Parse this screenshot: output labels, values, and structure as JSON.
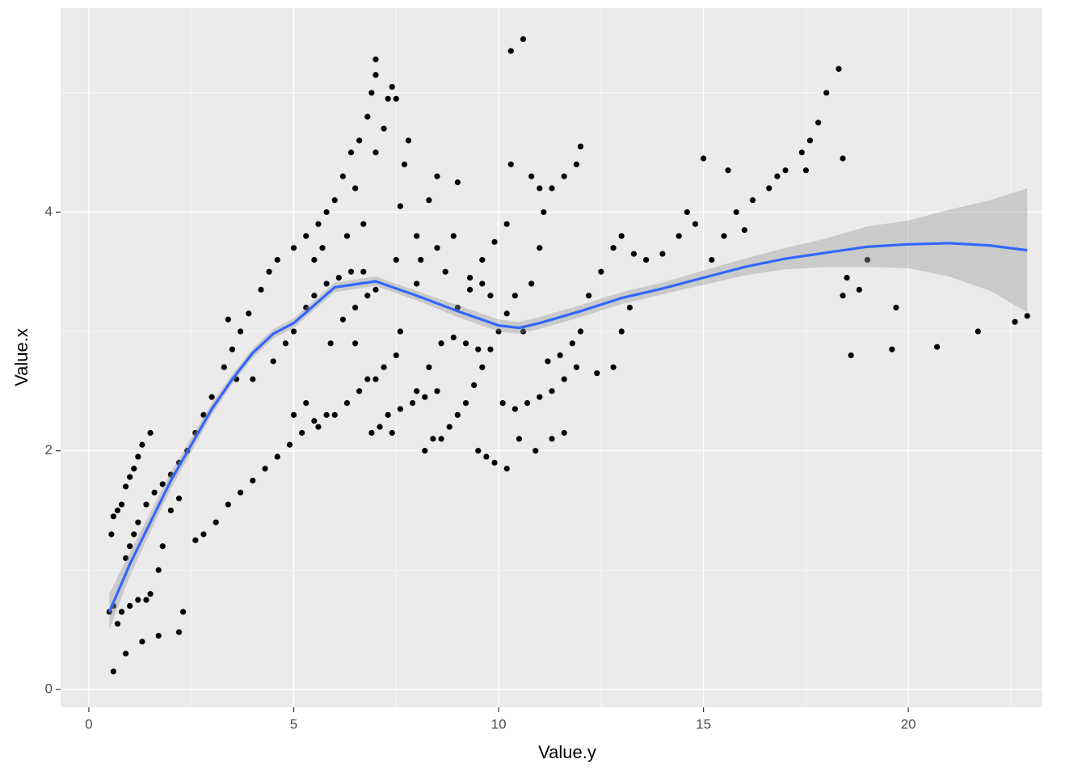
{
  "chart_data": {
    "type": "scatter",
    "x_label": "Value.y",
    "y_label": "Value.x",
    "xlim": [
      -0.69,
      23.27
    ],
    "ylim": [
      -0.15,
      5.71
    ],
    "xticks": [
      0,
      5,
      10,
      15,
      20
    ],
    "yticks": [
      0,
      2,
      4
    ],
    "grid": true,
    "point_color": "#000000",
    "line_color": "#3366FF",
    "band_color": "#999999",
    "points": {
      "x": [
        0.5,
        0.55,
        0.6,
        0.7,
        0.8,
        0.9,
        1.0,
        1.1,
        1.2,
        1.3,
        1.5,
        0.6,
        0.7,
        0.8,
        1.0,
        1.2,
        1.4,
        1.5,
        0.6,
        0.9,
        1.3,
        1.7,
        2.2,
        2.3,
        0.9,
        1.0,
        1.1,
        1.2,
        1.4,
        1.6,
        1.8,
        2.0,
        2.2,
        2.4,
        1.7,
        1.8,
        2.0,
        2.2,
        2.6,
        2.8,
        3.1,
        3.4,
        3.7,
        4.0,
        4.3,
        4.6,
        4.9,
        5.2,
        5.5,
        5.8,
        2.6,
        2.8,
        3.0,
        3.3,
        3.5,
        3.7,
        3.9,
        4.2,
        4.4,
        4.6,
        5.0,
        5.3,
        5.6,
        5.8,
        3.4,
        3.6,
        4.0,
        4.5,
        4.8,
        5.0,
        5.3,
        5.5,
        5.8,
        6.1,
        6.4,
        6.7,
        5.0,
        5.3,
        5.6,
        5.9,
        6.2,
        6.5,
        6.8,
        7.0,
        5.5,
        5.7,
        6.0,
        6.2,
        6.4,
        6.6,
        6.8,
        6.9,
        7.0,
        7.0,
        6.5,
        6.7,
        6.3,
        7.3,
        7.4,
        7.5,
        7.2,
        7.0,
        7.6,
        7.7,
        7.8,
        6.5,
        6.8,
        7.0,
        7.2,
        7.5,
        7.6,
        7.5,
        7.4,
        6.9,
        7.3,
        7.6,
        7.9,
        8.2,
        8.5,
        6.0,
        6.3,
        6.6,
        7.1,
        8.0,
        8.1,
        8.0,
        8.3,
        8.5,
        8.5,
        8.7,
        8.9,
        9.0,
        9.3,
        9.6,
        9.8,
        8.2,
        8.4,
        8.6,
        8.8,
        9.0,
        9.2,
        9.4,
        9.6,
        9.8,
        10.0,
        10.2,
        10.4,
        8.0,
        8.3,
        8.6,
        8.9,
        9.2,
        9.5,
        9.7,
        9.9,
        10.2,
        9.5,
        9.0,
        9.3,
        9.6,
        9.9,
        10.2,
        10.3,
        10.3,
        10.6,
        10.1,
        10.4,
        10.7,
        11.0,
        11.3,
        11.6,
        11.9,
        10.5,
        10.9,
        11.3,
        11.6,
        10.6,
        10.8,
        11.0,
        11.1,
        11.3,
        11.6,
        11.9,
        12.0,
        10.8,
        11.0,
        11.2,
        11.5,
        11.8,
        12.0,
        12.2,
        12.5,
        12.8,
        13.0,
        13.3,
        13.6,
        14.0,
        14.4,
        14.8,
        12.8,
        12.4,
        13.0,
        13.2,
        14.6,
        15.0,
        15.6,
        15.2,
        15.5,
        15.8,
        16.2,
        16.6,
        17.0,
        17.4,
        17.6,
        17.8,
        18.0,
        18.3,
        16.0,
        16.8,
        17.5,
        18.4,
        18.4,
        18.5,
        18.6,
        18.8,
        19.0,
        19.6,
        19.7,
        20.7,
        21.7,
        22.6,
        22.9
      ],
      "y": [
        0.65,
        1.3,
        1.45,
        1.5,
        1.55,
        1.7,
        1.78,
        1.85,
        1.95,
        2.05,
        2.15,
        0.7,
        0.55,
        0.65,
        0.7,
        0.75,
        0.75,
        0.8,
        0.15,
        0.3,
        0.4,
        0.45,
        0.48,
        0.65,
        1.1,
        1.2,
        1.3,
        1.4,
        1.55,
        1.65,
        1.72,
        1.8,
        1.9,
        2.0,
        1.0,
        1.2,
        1.5,
        1.6,
        1.25,
        1.3,
        1.4,
        1.55,
        1.65,
        1.75,
        1.85,
        1.95,
        2.05,
        2.15,
        2.25,
        2.3,
        2.15,
        2.3,
        2.45,
        2.7,
        2.85,
        3.0,
        3.15,
        3.35,
        3.5,
        3.6,
        3.7,
        3.8,
        3.9,
        4.0,
        3.1,
        2.6,
        2.6,
        2.75,
        2.9,
        3.0,
        3.2,
        3.3,
        3.4,
        3.45,
        3.5,
        3.5,
        2.3,
        2.4,
        2.2,
        2.9,
        3.1,
        3.2,
        3.3,
        3.35,
        3.6,
        3.7,
        4.1,
        4.3,
        4.5,
        4.6,
        4.8,
        5.0,
        5.15,
        5.28,
        4.2,
        3.9,
        3.8,
        4.95,
        5.05,
        4.95,
        4.7,
        4.5,
        4.05,
        4.4,
        4.6,
        2.9,
        2.6,
        2.6,
        2.7,
        3.6,
        3.0,
        2.8,
        2.15,
        2.15,
        2.3,
        2.35,
        2.4,
        2.45,
        2.5,
        2.3,
        2.4,
        2.5,
        2.2,
        3.4,
        3.6,
        3.8,
        4.1,
        4.3,
        3.7,
        3.5,
        3.8,
        4.25,
        3.35,
        3.4,
        3.3,
        2.0,
        2.1,
        2.1,
        2.2,
        2.3,
        2.4,
        2.55,
        2.7,
        2.85,
        3.0,
        3.15,
        3.3,
        2.5,
        2.7,
        2.9,
        2.95,
        2.9,
        2.85,
        1.95,
        1.9,
        1.85,
        2.0,
        3.2,
        3.45,
        3.6,
        3.75,
        3.9,
        4.4,
        5.35,
        5.45,
        2.4,
        2.35,
        2.4,
        2.45,
        2.5,
        2.6,
        2.7,
        2.1,
        2.0,
        2.1,
        2.15,
        3.0,
        3.4,
        3.7,
        4.0,
        4.2,
        4.3,
        4.4,
        4.55,
        4.3,
        4.2,
        2.75,
        2.8,
        2.9,
        3.0,
        3.3,
        3.5,
        3.7,
        3.8,
        3.65,
        3.6,
        3.65,
        3.8,
        3.9,
        2.7,
        2.65,
        3.0,
        3.2,
        4.0,
        4.45,
        4.35,
        3.6,
        3.8,
        4.0,
        4.1,
        4.2,
        4.35,
        4.5,
        4.6,
        4.75,
        5.0,
        5.2,
        3.85,
        4.3,
        4.35,
        4.45,
        3.3,
        3.45,
        2.8,
        3.35,
        3.6,
        2.85,
        3.2,
        2.87,
        3.0,
        3.08,
        3.13
      ]
    },
    "smooth": {
      "x": [
        0.5,
        1,
        1.5,
        2,
        2.5,
        3,
        3.5,
        4,
        4.5,
        5,
        6,
        7,
        8,
        9,
        10,
        10.5,
        11,
        12,
        13,
        14,
        15,
        16,
        17,
        18,
        19,
        20,
        21,
        22,
        22.9
      ],
      "y": [
        0.65,
        1.05,
        1.4,
        1.75,
        2.05,
        2.35,
        2.6,
        2.82,
        2.98,
        3.07,
        3.37,
        3.42,
        3.3,
        3.17,
        3.05,
        3.03,
        3.07,
        3.17,
        3.28,
        3.36,
        3.45,
        3.54,
        3.61,
        3.66,
        3.71,
        3.73,
        3.74,
        3.72,
        3.68
      ],
      "ymin": [
        0.5,
        0.95,
        1.32,
        1.68,
        1.99,
        2.3,
        2.56,
        2.78,
        2.94,
        3.03,
        3.33,
        3.38,
        3.26,
        3.12,
        3.0,
        2.98,
        3.02,
        3.12,
        3.23,
        3.31,
        3.39,
        3.47,
        3.52,
        3.54,
        3.54,
        3.53,
        3.46,
        3.34,
        3.16
      ],
      "ymax": [
        0.8,
        1.15,
        1.48,
        1.82,
        2.11,
        2.4,
        2.64,
        2.86,
        3.02,
        3.11,
        3.41,
        3.46,
        3.34,
        3.22,
        3.1,
        3.08,
        3.12,
        3.22,
        3.33,
        3.41,
        3.51,
        3.61,
        3.7,
        3.78,
        3.88,
        3.93,
        4.02,
        4.1,
        4.2
      ]
    }
  }
}
